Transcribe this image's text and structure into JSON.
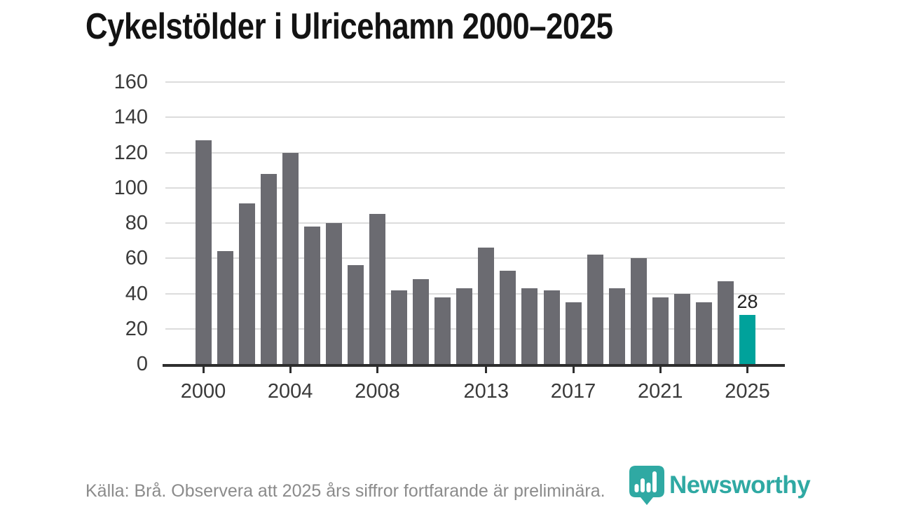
{
  "chart_data": {
    "type": "bar",
    "title": "Cykelstölder i Ulricehamn 2000–2025",
    "categories": [
      2000,
      2001,
      2002,
      2003,
      2004,
      2005,
      2006,
      2007,
      2008,
      2009,
      2010,
      2011,
      2012,
      2013,
      2014,
      2015,
      2016,
      2017,
      2018,
      2019,
      2020,
      2021,
      2022,
      2023,
      2024,
      2025
    ],
    "values": [
      127,
      64,
      91,
      108,
      120,
      78,
      80,
      56,
      85,
      42,
      48,
      38,
      43,
      66,
      53,
      43,
      42,
      35,
      62,
      43,
      60,
      38,
      40,
      35,
      47,
      28
    ],
    "ylim": [
      0,
      160
    ],
    "y_ticks": [
      0,
      20,
      40,
      60,
      80,
      100,
      120,
      140,
      160
    ],
    "x_tick_years": [
      2000,
      2004,
      2008,
      2013,
      2017,
      2021,
      2025
    ],
    "grid": "horizontal",
    "legend": "none",
    "bar_color": "#6b6b71",
    "highlight_year": 2025,
    "highlight_color": "#00a29b",
    "highlight_value_label": "28"
  },
  "footer": {
    "source_note": "Källa: Brå. Observera att 2025 års siffror fortfarande är preliminära.",
    "logo": {
      "text": "Newsworthy",
      "icon": "newsworthy-pin-barchart-icon",
      "color": "#2fa9a3"
    }
  },
  "colors": {
    "background": "#ffffff",
    "title": "#131313",
    "bar": "#6b6b71",
    "highlight": "#00a29b",
    "gridline": "#dcdcdc",
    "axis": "#2e2e2e",
    "axis_label": "#3a3a3a",
    "value_label": "#222222",
    "source_text": "#8b8b8b",
    "logo_teal": "#2fa9a3"
  }
}
